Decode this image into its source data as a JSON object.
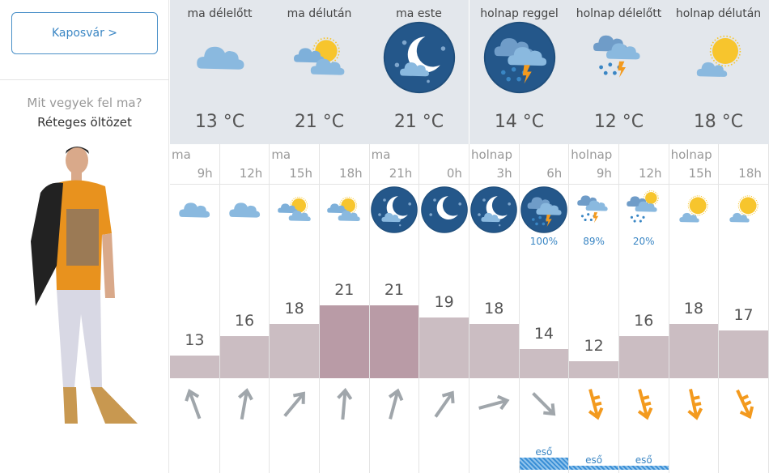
{
  "location_button": "Kaposvár >",
  "clothing": {
    "question": "Mit vegyek fel ma?",
    "answer": "Réteges öltözet"
  },
  "periods": [
    {
      "label": "ma délelőtt",
      "icon": "cloudy",
      "temp": "13 °C"
    },
    {
      "label": "ma délután",
      "icon": "partly-sunny",
      "temp": "21 °C"
    },
    {
      "label": "ma este",
      "icon": "night-cloudy",
      "temp": "21 °C"
    },
    {
      "label": "holnap reggel",
      "icon": "night-storm",
      "temp": "14 °C"
    },
    {
      "label": "holnap délelőtt",
      "icon": "rain-storm",
      "temp": "12 °C"
    },
    {
      "label": "holnap délután",
      "icon": "sun-cloud",
      "temp": "18 °C"
    }
  ],
  "hourly": [
    {
      "day": "ma",
      "hour": "9h",
      "icon": "cloudy",
      "temp": 13,
      "wind_deg": -20,
      "gust": false
    },
    {
      "day": "",
      "hour": "12h",
      "icon": "cloudy",
      "temp": 16,
      "wind_deg": 10,
      "gust": false
    },
    {
      "day": "ma",
      "hour": "15h",
      "icon": "partly-sunny",
      "temp": 18,
      "wind_deg": 40,
      "gust": false
    },
    {
      "day": "",
      "hour": "18h",
      "icon": "partly-sunny",
      "temp": 21,
      "wind_deg": 5,
      "gust": false
    },
    {
      "day": "ma",
      "hour": "21h",
      "icon": "night-cloudy",
      "temp": 21,
      "wind_deg": 15,
      "gust": false
    },
    {
      "day": "",
      "hour": "0h",
      "icon": "night-clear",
      "temp": 19,
      "wind_deg": 35,
      "gust": false
    },
    {
      "day": "holnap",
      "hour": "3h",
      "icon": "night-cloudy",
      "temp": 18,
      "wind_deg": 75,
      "gust": false
    },
    {
      "day": "",
      "hour": "6h",
      "icon": "night-storm",
      "temp": 14,
      "wind_deg": 135,
      "gust": false,
      "precip": "100%",
      "rain": "eső",
      "rain_level": 0.6
    },
    {
      "day": "holnap",
      "hour": "9h",
      "icon": "rain-storm",
      "temp": 12,
      "wind_deg": 165,
      "gust": true,
      "precip": "89%",
      "rain": "eső",
      "rain_level": 0.2
    },
    {
      "day": "",
      "hour": "12h",
      "icon": "rain-sun",
      "temp": 16,
      "wind_deg": 165,
      "gust": true,
      "precip": "20%",
      "rain": "eső",
      "rain_level": 0.2
    },
    {
      "day": "holnap",
      "hour": "15h",
      "icon": "sun-cloud",
      "temp": 18,
      "wind_deg": 168,
      "gust": true
    },
    {
      "day": "",
      "hour": "18h",
      "icon": "sun-cloud",
      "temp": 17,
      "wind_deg": 155,
      "gust": true
    }
  ],
  "colors": {
    "accent": "#3a86c4",
    "bar": "#cbbdc2",
    "bar_hot": "#b99ba6",
    "gust": "#f39a1e",
    "wind": "#a0a6ab"
  }
}
